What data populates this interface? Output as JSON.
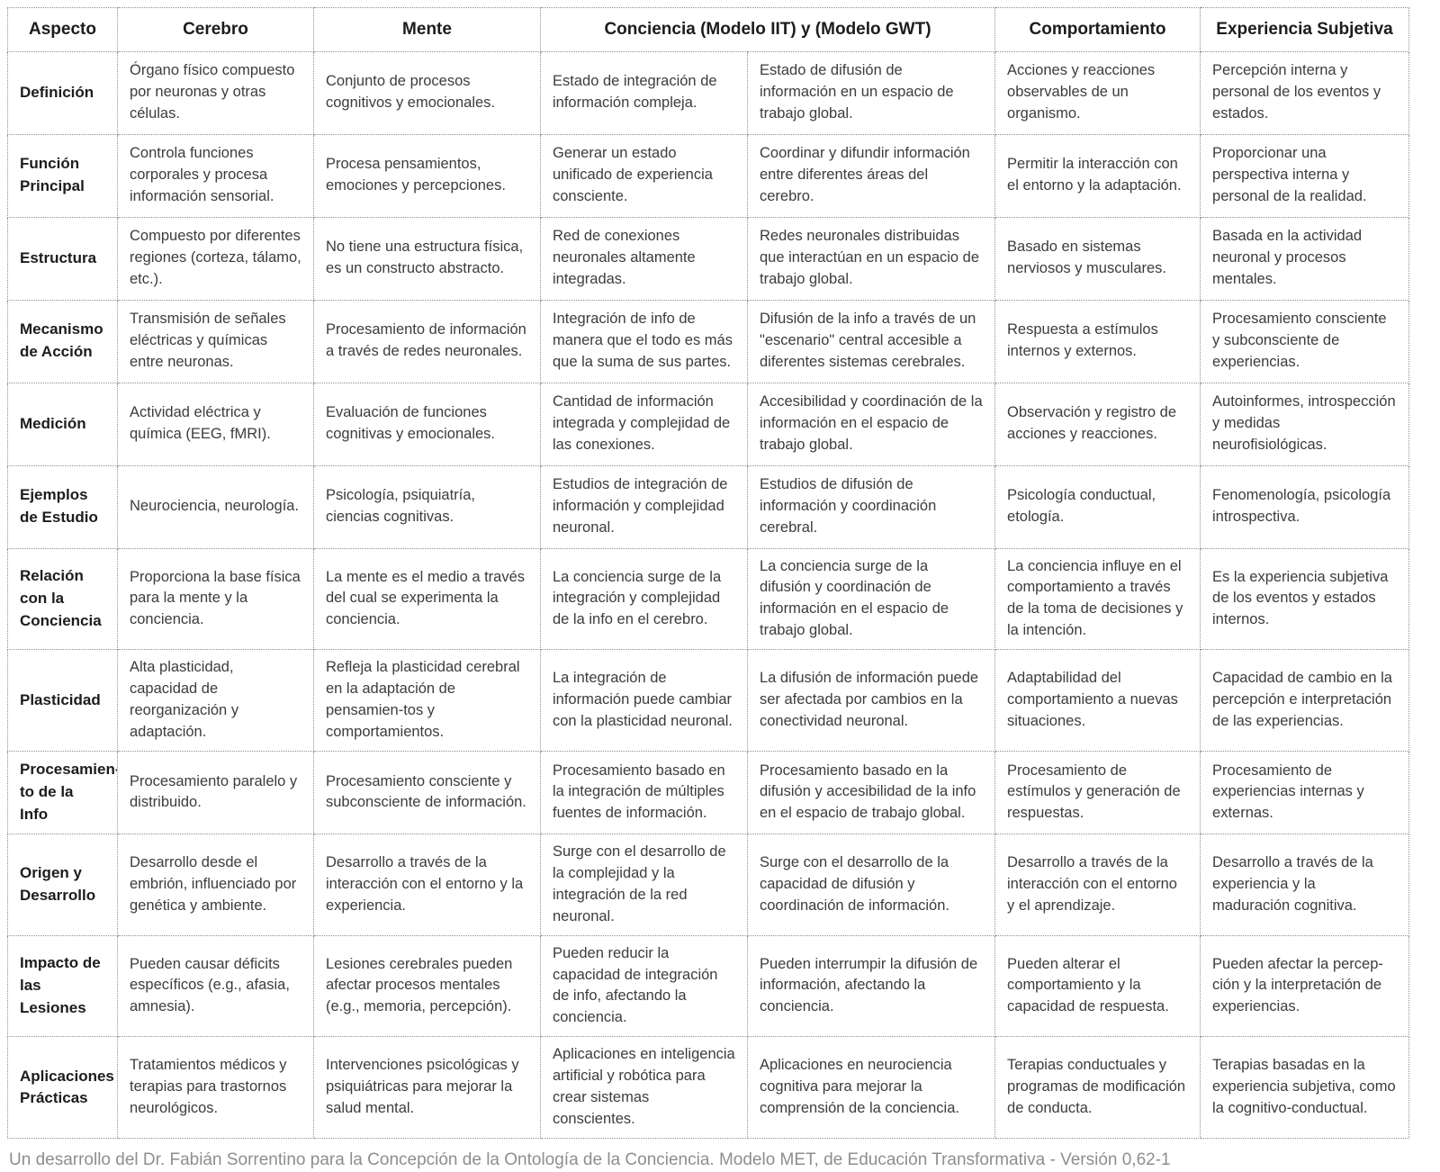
{
  "table": {
    "headers": {
      "aspecto": "Aspecto",
      "cerebro": "Cerebro",
      "mente": "Mente",
      "conciencia": "Conciencia (Modelo IIT) y (Modelo GWT)",
      "comportamiento": "Comportamiento",
      "experiencia": "Experiencia Subjetiva"
    },
    "rows": [
      {
        "aspecto": "Definición",
        "cerebro": "Órgano físico compuesto por neuronas y otras células.",
        "mente": "Conjunto de procesos cognitivos y emocionales.",
        "iit": "Estado de integración de información compleja.",
        "gwt": "Estado de difusión de información en un espacio de trabajo global.",
        "comportamiento": "Acciones y reacciones observables de un organismo.",
        "experiencia": "Percepción interna y personal de los eventos y estados."
      },
      {
        "aspecto": "Función Principal",
        "cerebro": "Controla funciones corporales y procesa información sensorial.",
        "mente": "Procesa pensamientos, emociones y percepciones.",
        "iit": "Generar un estado unificado de experiencia consciente.",
        "gwt": "Coordinar y difundir información entre diferentes áreas del cerebro.",
        "comportamiento": "Permitir la interacción con el entorno y la adaptación.",
        "experiencia": "Proporcionar una perspectiva interna y personal de la realidad."
      },
      {
        "aspecto": "Estructura",
        "cerebro": "Compuesto por diferentes regiones (corteza, tálamo, etc.).",
        "mente": "No tiene una estructura física, es un constructo abstracto.",
        "iit": "Red de conexiones neuronales altamente integradas.",
        "gwt": "Redes neuronales distribuidas que interactúan en un espacio de trabajo global.",
        "comportamiento": "Basado en sistemas nerviosos y musculares.",
        "experiencia": "Basada en la actividad neuronal y procesos mentales."
      },
      {
        "aspecto": "Mecanismo de Acción",
        "cerebro": "Transmisión de señales eléctricas y químicas entre neuronas.",
        "mente": "Procesamiento de información a través de redes neuronales.",
        "iit": "Integración de info de manera que el todo es más que la suma de sus partes.",
        "gwt": "Difusión de la info a través de un \"escenario\" central accesible a diferentes sistemas cerebrales.",
        "comportamiento": "Respuesta a estímulos internos y externos.",
        "experiencia": "Procesamiento consciente y subconsciente de experiencias."
      },
      {
        "aspecto": "Medición",
        "cerebro": "Actividad eléctrica y química (EEG, fMRI).",
        "mente": "Evaluación de funciones cognitivas y emocionales.",
        "iit": "Cantidad de información integrada y complejidad de las conexiones.",
        "gwt": "Accesibilidad y coordinación de la información en el espacio de trabajo global.",
        "comportamiento": "Observación y registro de acciones y reacciones.",
        "experiencia": "Autoinformes, introspección y medidas neurofisiológicas."
      },
      {
        "aspecto": "Ejemplos de Estudio",
        "cerebro": "Neurociencia, neurología.",
        "mente": "Psicología, psiquiatría, ciencias cognitivas.",
        "iit": "Estudios de integración de información y complejidad neuronal.",
        "gwt": "Estudios de difusión de información y coordinación cerebral.",
        "comportamiento": "Psicología conductual, etología.",
        "experiencia": "Fenomenología, psicología introspectiva."
      },
      {
        "aspecto": "Relación con la Conciencia",
        "cerebro": "Proporciona la base física para la mente y la conciencia.",
        "mente": "La mente es el medio a través del cual se experimenta la conciencia.",
        "iit": "La conciencia surge de la integración y complejidad de la info en el cerebro.",
        "gwt": "La conciencia surge de la difusión y coordinación de información en el espacio de trabajo global.",
        "comportamiento": "La conciencia influye en el comportamiento a través de la toma de decisiones y la intención.",
        "experiencia": "Es la experiencia subjetiva de los eventos y estados internos."
      },
      {
        "aspecto": "Plasticidad",
        "cerebro": "Alta plasticidad, capacidad de reorganización y adaptación.",
        "mente": "Refleja la plasticidad cerebral en la adaptación de pensamien-tos y comportamientos.",
        "iit": "La integración de información puede cambiar con la plasticidad neuronal.",
        "gwt": "La difusión de información puede ser afectada por cambios en la conectividad neuronal.",
        "comportamiento": "Adaptabilidad del comportamiento a nuevas situaciones.",
        "experiencia": "Capacidad de cambio en la percepción e interpretación de las experiencias."
      },
      {
        "aspecto": "Procesamien-to de la Info",
        "cerebro": "Procesamiento paralelo y distribuido.",
        "mente": "Procesamiento consciente y subconsciente de información.",
        "iit": "Procesamiento basado en la integración de múltiples fuentes de información.",
        "gwt": "Procesamiento basado en la difusión y accesibilidad de la info en el espacio de trabajo global.",
        "comportamiento": "Procesamiento de estímulos y generación de respuestas.",
        "experiencia": "Procesamiento de experiencias internas y externas."
      },
      {
        "aspecto": "Origen y Desarrollo",
        "cerebro": "Desarrollo desde el embrión, influenciado por genética y ambiente.",
        "mente": "Desarrollo a través de la interacción con el entorno y la experiencia.",
        "iit": "Surge con el desarrollo de la complejidad y la integración de la red neuronal.",
        "gwt": "Surge con el desarrollo de la capacidad de difusión y coordinación de información.",
        "comportamiento": "Desarrollo a través de la interacción con el entorno y el aprendizaje.",
        "experiencia": "Desarrollo a través de la experiencia y la maduración cognitiva."
      },
      {
        "aspecto": "Impacto de las Lesiones",
        "cerebro": "Pueden causar déficits específicos (e.g., afasia, amnesia).",
        "mente": "Lesiones cerebrales pueden afectar procesos mentales (e.g., memoria, percepción).",
        "iit": "Pueden reducir la capacidad de integración de info, afectando la conciencia.",
        "gwt": "Pueden interrumpir la difusión de información, afectando la conciencia.",
        "comportamiento": "Pueden alterar el comportamiento y la capacidad de respuesta.",
        "experiencia": "Pueden afectar la percep-ción y la interpretación de experiencias."
      },
      {
        "aspecto": "Aplicaciones Prácticas",
        "cerebro": "Tratamientos médicos y terapias para trastornos neurológicos.",
        "mente": "Intervenciones psicológicas y psiquiátricas para mejorar la salud mental.",
        "iit": "Aplicaciones en inteligencia artificial y robótica para crear sistemas conscientes.",
        "gwt": "Aplicaciones en neurociencia cognitiva para mejorar la comprensión de la conciencia.",
        "comportamiento": "Terapias conductuales y programas de modificación de conducta.",
        "experiencia": "Terapias basadas en la experiencia subjetiva, como la cognitivo-conductual."
      }
    ]
  },
  "footer": {
    "text": "Un desarrollo del Dr. Fabián Sorrentino para la Concepción de la Ontología de la Conciencia. Modelo MET, de Educación Transformativa - Versión 0,62-1"
  }
}
